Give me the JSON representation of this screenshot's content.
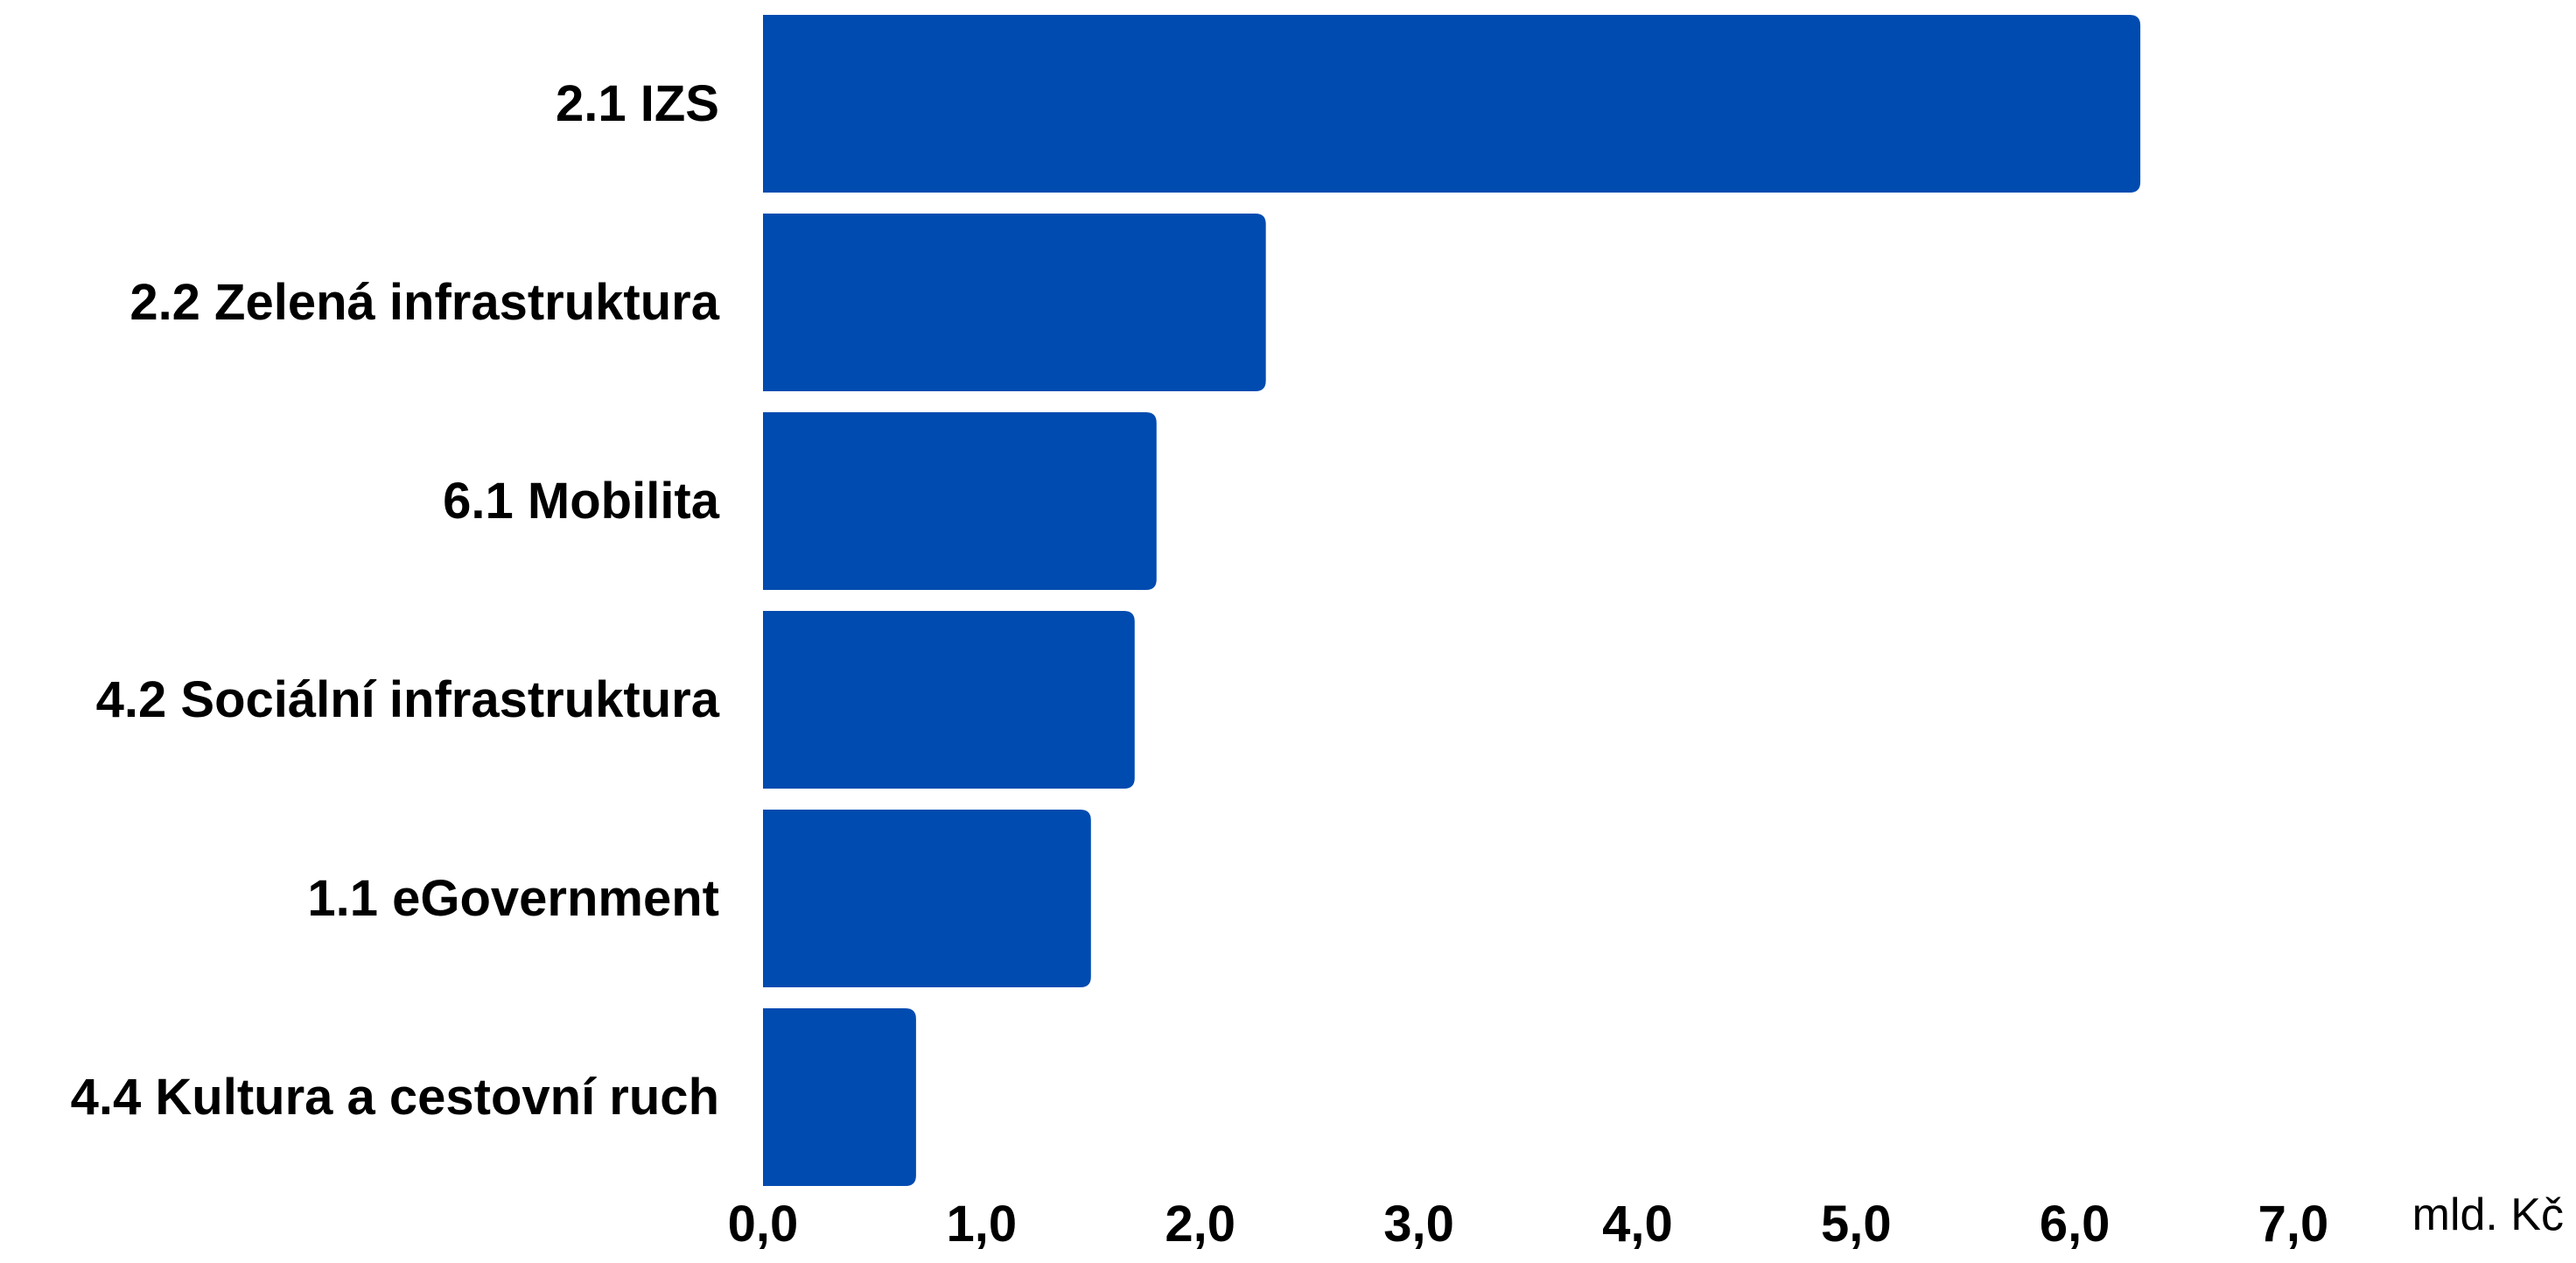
{
  "chart_data": {
    "type": "bar",
    "orientation": "horizontal",
    "categories": [
      "2.1 IZS",
      "2.2 Zelená infrastruktura",
      "6.1 Mobilita",
      "4.2 Sociální infrastruktura",
      "1.1 eGovernment",
      "4.4 Kultura a cestovní ruch"
    ],
    "values": [
      6.3,
      2.3,
      1.8,
      1.7,
      1.5,
      0.7
    ],
    "title": "",
    "xlabel": "",
    "ylabel": "",
    "unit": "mld. Kč",
    "xlim": [
      0,
      7
    ],
    "xticks": [
      "0,0",
      "1,0",
      "2,0",
      "3,0",
      "4,0",
      "5,0",
      "6,0",
      "7,0"
    ],
    "grid": false,
    "legend": "none",
    "bar_color": "#004BB0"
  }
}
